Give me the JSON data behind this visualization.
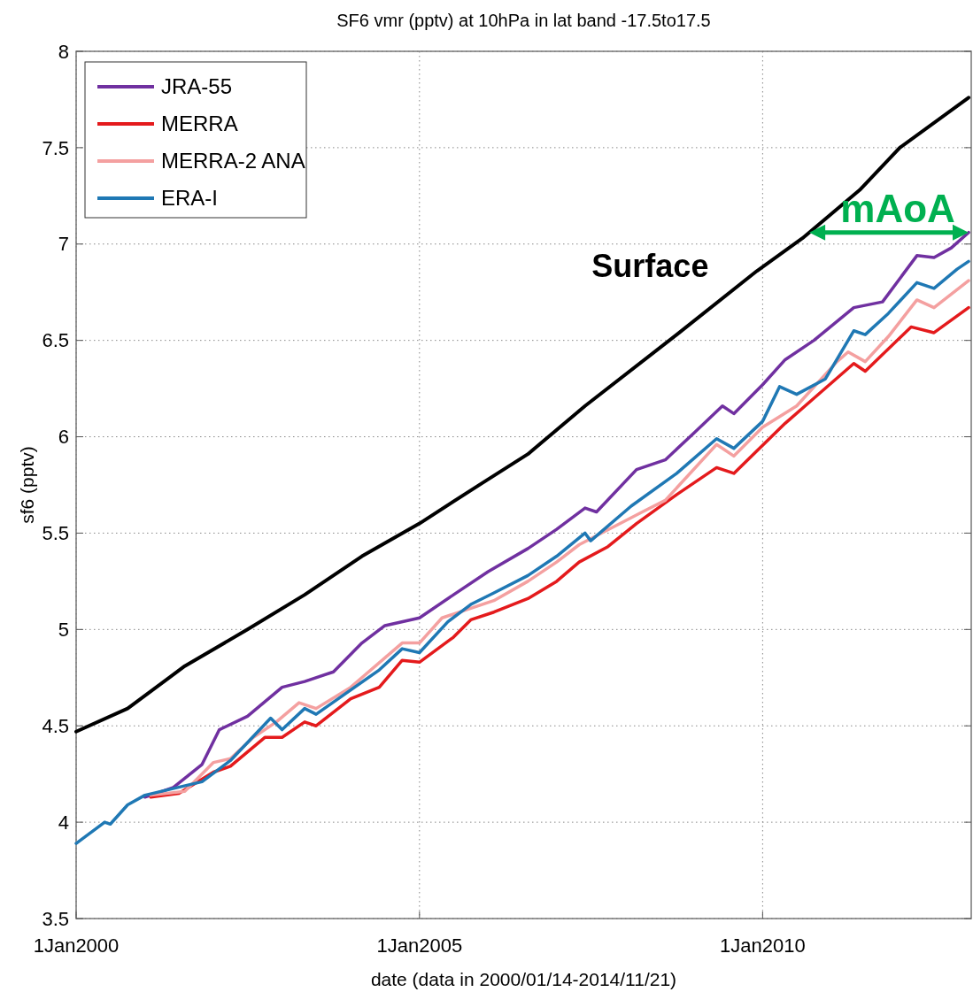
{
  "chart_data": {
    "type": "line",
    "title": "SF6 vmr (pptv) at 10hPa in lat band -17.5to17.5",
    "xlabel": "date (data in 2000/01/14-2014/11/21)",
    "ylabel": "sf6 (pptv)",
    "xlim": [
      "2000-01-01",
      "2013-01-15"
    ],
    "xticks": [
      {
        "value": "2000-01-01",
        "label": "1Jan2000"
      },
      {
        "value": "2005-01-01",
        "label": "1Jan2005"
      },
      {
        "value": "2010-01-01",
        "label": "1Jan2010"
      }
    ],
    "ylim": [
      3.5,
      8
    ],
    "yticks": [
      3.5,
      4,
      4.5,
      5,
      5.5,
      6,
      6.5,
      7,
      7.5,
      8
    ],
    "grid": true,
    "legend": "top left",
    "line_style": "solid",
    "marker": "none",
    "series": [
      {
        "name": "JRA-55",
        "color": "#7030a0",
        "x": [
          "2001-01",
          "2001-06",
          "2001-11",
          "2002-02",
          "2002-07",
          "2003-01",
          "2003-05",
          "2003-10",
          "2004-03",
          "2004-07",
          "2005-01",
          "2005-07",
          "2006-01",
          "2006-08",
          "2007-01",
          "2007-06",
          "2007-08",
          "2008-03",
          "2008-08",
          "2009-01",
          "2009-06",
          "2009-08",
          "2010-01",
          "2010-05",
          "2010-10",
          "2011-05",
          "2011-10",
          "2012-04",
          "2012-07",
          "2012-10",
          "2013-01"
        ],
        "values": [
          4.13,
          4.18,
          4.3,
          4.48,
          4.55,
          4.7,
          4.73,
          4.78,
          4.93,
          5.02,
          5.06,
          5.18,
          5.3,
          5.42,
          5.52,
          5.63,
          5.61,
          5.83,
          5.88,
          6.02,
          6.16,
          6.12,
          6.27,
          6.4,
          6.5,
          6.67,
          6.7,
          6.94,
          6.93,
          6.98,
          7.06
        ]
      },
      {
        "name": "MERRA",
        "color": "#e41a1c",
        "x": [
          "2001-02",
          "2001-07",
          "2002-01",
          "2002-04",
          "2002-10",
          "2003-01",
          "2003-05",
          "2003-07",
          "2004-01",
          "2004-06",
          "2004-10",
          "2005-01",
          "2005-07",
          "2005-10",
          "2006-02",
          "2006-08",
          "2007-01",
          "2007-05",
          "2007-10",
          "2008-03",
          "2008-10",
          "2009-05",
          "2009-08",
          "2010-05",
          "2010-10",
          "2011-05",
          "2011-07",
          "2012-03",
          "2012-07",
          "2013-01"
        ],
        "values": [
          4.13,
          4.15,
          4.26,
          4.29,
          4.44,
          4.44,
          4.52,
          4.5,
          4.64,
          4.7,
          4.84,
          4.83,
          4.96,
          5.05,
          5.09,
          5.16,
          5.25,
          5.35,
          5.43,
          5.55,
          5.7,
          5.84,
          5.81,
          6.07,
          6.2,
          6.38,
          6.34,
          6.57,
          6.54,
          6.67
        ]
      },
      {
        "name": "MERRA-2 ANA",
        "color": "#f4a0a0",
        "x": [
          "2001-02",
          "2001-08",
          "2002-01",
          "2002-04",
          "2002-08",
          "2002-12",
          "2003-04",
          "2003-07",
          "2004-01",
          "2004-10",
          "2005-01",
          "2005-05",
          "2006-02",
          "2006-08",
          "2007-01",
          "2007-05",
          "2008-04",
          "2008-08",
          "2009-05",
          "2009-08",
          "2010-01",
          "2010-07",
          "2011-02",
          "2011-04",
          "2011-07",
          "2011-11",
          "2012-04",
          "2012-07",
          "2013-01"
        ],
        "values": [
          4.14,
          4.16,
          4.31,
          4.33,
          4.44,
          4.52,
          4.62,
          4.59,
          4.7,
          4.93,
          4.93,
          5.06,
          5.15,
          5.25,
          5.35,
          5.44,
          5.61,
          5.67,
          5.96,
          5.9,
          6.05,
          6.16,
          6.39,
          6.44,
          6.39,
          6.52,
          6.71,
          6.67,
          6.81
        ]
      },
      {
        "name": "ERA-I",
        "color": "#1f78b4",
        "x": [
          "2000-01",
          "2000-06",
          "2000-07",
          "2000-10",
          "2001-01",
          "2001-11",
          "2002-04",
          "2002-11",
          "2003-01",
          "2003-05",
          "2003-07",
          "2004-06",
          "2004-10",
          "2005-01",
          "2005-06",
          "2005-10",
          "2006-02",
          "2006-08",
          "2007-01",
          "2007-06",
          "2007-07",
          "2008-02",
          "2008-10",
          "2009-05",
          "2009-08",
          "2010-01",
          "2010-04",
          "2010-07",
          "2010-12",
          "2011-05",
          "2011-07",
          "2011-11",
          "2012-04",
          "2012-07",
          "2012-11",
          "2013-01"
        ],
        "values": [
          3.89,
          4.0,
          3.99,
          4.09,
          4.14,
          4.21,
          4.32,
          4.54,
          4.48,
          4.59,
          4.56,
          4.79,
          4.9,
          4.88,
          5.04,
          5.13,
          5.19,
          5.28,
          5.38,
          5.5,
          5.46,
          5.64,
          5.81,
          5.99,
          5.94,
          6.08,
          6.26,
          6.22,
          6.3,
          6.55,
          6.53,
          6.64,
          6.8,
          6.77,
          6.87,
          6.91
        ]
      },
      {
        "color": "#000000",
        "x": [
          "2000-01",
          "2000-10",
          "2001-08",
          "2002-07",
          "2003-05",
          "2004-03",
          "2005-01",
          "2005-12",
          "2006-08",
          "2007-06",
          "2008-10",
          "2009-12",
          "2010-08",
          "2011-06",
          "2012-01",
          "2013-01"
        ],
        "values": [
          4.47,
          4.59,
          4.81,
          5.0,
          5.18,
          5.38,
          5.55,
          5.76,
          5.91,
          6.16,
          6.53,
          6.86,
          7.03,
          7.28,
          7.5,
          7.76
        ]
      }
    ],
    "annotations": [
      "Surface",
      "mAoA"
    ]
  }
}
